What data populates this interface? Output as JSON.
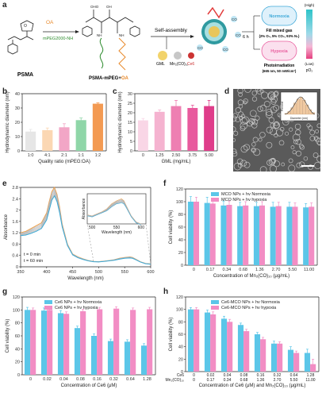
{
  "panel_labels": {
    "a": "a",
    "b": "b",
    "c": "c",
    "d": "d",
    "e": "e",
    "f": "f",
    "g": "g",
    "h": "h"
  },
  "schematic": {
    "psma_label": "PSMA",
    "oa_label": "OA",
    "mpeg_label": "mPEG2000-NH",
    "mpeg_sub": "2",
    "product_label_1": "PSMA-mPEG",
    "product_label_plus": "+",
    "product_label_2": "OA",
    "self_assembly": "Self-assembly",
    "gml": "GML",
    "mn": "Mn₂(CO)₁₀",
    "ce6": "Ce6",
    "co": "CO",
    "hours": "6 h",
    "normoxia": "Normoxia",
    "hypoxia": "Hypoxia",
    "fill_gas": "Fill mixed gas",
    "fill_gas_detail": "(2% O₂, 5% CO₂, 93% N₂)",
    "photoirradiation": "Photoirradiation",
    "irradiation_detail": "(665 nm, 50 mW/cm²)",
    "scale_high": "(High)",
    "scale_low": "(Low)",
    "scale_label": "pO₂",
    "colors": {
      "normoxia": "#3fa9d8",
      "hypoxia": "#e95f9f",
      "oa": "#e8892b",
      "mpeg": "#2f8c2f"
    }
  },
  "panel_d": {
    "inset_ylabel": "Percent",
    "inset_xlabel": "Diameter (nm)",
    "inset_ticks": [
      "0",
      "4",
      "8",
      "12",
      "16",
      "20",
      "24"
    ]
  },
  "panel_e": {
    "t0": "t = 0 min",
    "t60": "t = 60 min",
    "inset_ylabel": "Absorbance",
    "inset_xlabel": "Wavelength (nm)",
    "inset_xticks": [
      "500",
      "550",
      "600"
    ]
  },
  "chart_data": [
    {
      "panel": "b",
      "type": "bar",
      "categories": [
        "1:0",
        "4:1",
        "2:1",
        "1:1",
        "1:2"
      ],
      "values": [
        13.5,
        14.5,
        16.5,
        21.5,
        33.0
      ],
      "errors": [
        1.5,
        1.5,
        2.5,
        1.5,
        0.6
      ],
      "colors": [
        "#e6e6e6",
        "#fbd7b3",
        "#f2a6c6",
        "#8fd6a8",
        "#f39a52"
      ],
      "xlabel": "Quality ratio (mPEG:OA)",
      "ylabel": "Hydrodynamic diameter (nm)",
      "ylim": [
        0,
        40
      ],
      "yticks": [
        0,
        10,
        20,
        30,
        40
      ]
    },
    {
      "panel": "c",
      "type": "bar",
      "categories": [
        "0",
        "1.25",
        "2.50",
        "3.75",
        "5.00"
      ],
      "values": [
        16.0,
        20.5,
        23.5,
        22.5,
        23.5
      ],
      "errors": [
        1.0,
        1.0,
        3.0,
        1.5,
        3.0
      ],
      "colors": [
        "#f9d6e6",
        "#f5b3d0",
        "#ee7fb2",
        "#e85a9d",
        "#df3d8a"
      ],
      "xlabel": "GML (mg/mL)",
      "ylabel": "Hydrodynamic diameter (nm)",
      "ylim": [
        0,
        30
      ],
      "yticks": [
        0,
        5,
        10,
        15,
        20,
        25,
        30
      ]
    },
    {
      "panel": "e",
      "type": "line",
      "xlabel": "Wavelength (nm)",
      "ylabel": "Absorbance",
      "xlim": [
        350,
        600
      ],
      "ylim": [
        0,
        2.8
      ],
      "xticks": [
        350,
        400,
        450,
        500,
        550,
        600
      ],
      "yticks": [
        0.0,
        0.4,
        0.8,
        1.2,
        1.6,
        2.0,
        2.4,
        2.8
      ],
      "series": [
        {
          "name": "t = 0 min",
          "x": [
            350,
            360,
            370,
            380,
            390,
            400,
            405,
            410,
            415,
            420,
            425,
            430,
            440,
            450,
            460,
            470,
            480,
            490,
            500,
            510,
            520,
            530,
            540,
            550,
            560,
            565,
            570,
            580,
            590,
            600
          ],
          "y": [
            1.2,
            1.25,
            1.35,
            1.45,
            1.55,
            1.9,
            2.3,
            2.65,
            2.8,
            2.55,
            2.1,
            1.5,
            0.8,
            0.45,
            0.35,
            0.28,
            0.22,
            0.19,
            0.18,
            0.2,
            0.22,
            0.25,
            0.3,
            0.33,
            0.35,
            0.33,
            0.28,
            0.18,
            0.12,
            0.1
          ]
        },
        {
          "name": "t = 60 min",
          "x": [
            350,
            360,
            370,
            380,
            390,
            400,
            405,
            410,
            415,
            420,
            425,
            430,
            440,
            450,
            460,
            470,
            480,
            490,
            500,
            510,
            520,
            530,
            540,
            550,
            560,
            565,
            570,
            580,
            590,
            600
          ],
          "y": [
            1.1,
            1.12,
            1.18,
            1.25,
            1.35,
            1.65,
            2.0,
            2.35,
            2.5,
            2.3,
            1.9,
            1.4,
            0.75,
            0.42,
            0.32,
            0.26,
            0.21,
            0.18,
            0.17,
            0.19,
            0.21,
            0.23,
            0.27,
            0.3,
            0.31,
            0.3,
            0.26,
            0.17,
            0.11,
            0.09
          ]
        }
      ]
    },
    {
      "panel": "f",
      "type": "bar",
      "categories": [
        "0",
        "0.17",
        "0.34",
        "0.68",
        "1.36",
        "2.70",
        "5.50",
        "11.00"
      ],
      "xlabel": "Concentration of Mn₂(CO)₁₀ (μg/mL)",
      "ylabel": "Cell viability (%)",
      "ylim": [
        0,
        120
      ],
      "yticks": [
        0,
        20,
        40,
        60,
        80,
        100,
        120
      ],
      "series": [
        {
          "name": "MCO NPs + hv  Normoxia",
          "color": "#5bc6e8",
          "values": [
            100,
            98,
            94,
            93,
            93,
            92,
            92,
            91
          ],
          "errors": [
            8,
            9,
            7,
            6,
            6,
            7,
            7,
            6
          ]
        },
        {
          "name": "MCO NPs + hv  hypoxia",
          "color": "#f28dc4",
          "values": [
            100,
            97,
            95,
            94,
            94,
            93,
            92,
            92
          ],
          "errors": [
            7,
            8,
            6,
            6,
            6,
            6,
            6,
            6
          ]
        }
      ]
    },
    {
      "panel": "g",
      "type": "bar",
      "categories": [
        "0",
        "0.02",
        "0.04",
        "0.08",
        "0.16",
        "0.32",
        "0.64",
        "1.28"
      ],
      "xlabel": "Concentration of Ce6 (μM)",
      "ylabel": "Cell viability (%)",
      "ylim": [
        0,
        120
      ],
      "yticks": [
        0,
        20,
        40,
        60,
        80,
        100,
        120
      ],
      "series": [
        {
          "name": "Ce6 NPs + hv  Normoxia",
          "color": "#5bc6e8",
          "values": [
            100,
            99,
            95,
            72,
            60,
            52,
            51,
            45
          ],
          "errors": [
            4,
            4,
            4,
            3,
            3,
            3,
            3,
            3
          ]
        },
        {
          "name": "Ce6 NPs + hv  hypoxia",
          "color": "#f28dc4",
          "values": [
            100,
            100,
            94,
            98,
            101,
            102,
            100,
            101
          ],
          "errors": [
            3,
            3,
            3,
            3,
            3,
            3,
            3,
            3
          ]
        }
      ]
    },
    {
      "panel": "h",
      "type": "bar",
      "categories": [
        "0",
        "0.02",
        "0.04",
        "0.08",
        "0.16",
        "0.32",
        "0.64",
        "1.28"
      ],
      "categories2": [
        "0",
        "0.17",
        "0.34",
        "0.68",
        "1.36",
        "2.70",
        "5.50",
        "11.00"
      ],
      "row_label_1": "Ce6",
      "row_label_2": "Mn₂(CO)₁₀",
      "xlabel": "Concentration of Ce6 (μM) and Mn₂(CO)₁₀ (μg/mL)",
      "ylabel": "Cell viability (%)",
      "ylim": [
        0,
        120
      ],
      "yticks": [
        0,
        20,
        40,
        60,
        80,
        100,
        120
      ],
      "series": [
        {
          "name": "Ce6-MCO NPs + hv  Normoxia",
          "color": "#5bc6e8",
          "values": [
            100,
            95,
            85,
            75,
            60,
            45,
            35,
            30
          ],
          "errors": [
            3,
            4,
            4,
            3,
            3,
            4,
            5,
            6
          ]
        },
        {
          "name": "Ce6-MCO NPs + hv  hypoxia",
          "color": "#f28dc4",
          "values": [
            100,
            92,
            80,
            65,
            52,
            45,
            30,
            12
          ],
          "errors": [
            3,
            4,
            4,
            3,
            3,
            3,
            3,
            8
          ]
        }
      ]
    }
  ]
}
